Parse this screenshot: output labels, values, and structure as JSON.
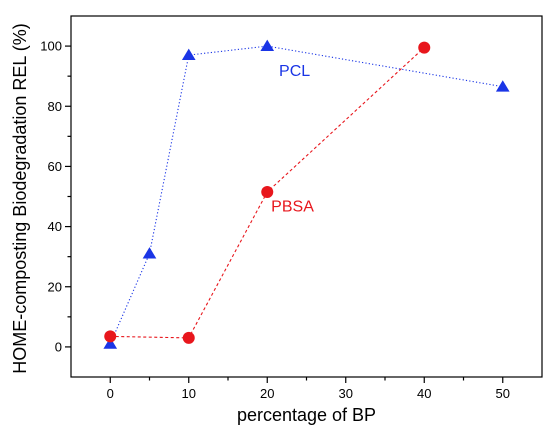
{
  "chart_data": {
    "type": "scatter",
    "title": "",
    "xlabel": "percentage of BP",
    "ylabel": "HOME-composting Biodegradation REL (%)",
    "xlim": [
      -5,
      55
    ],
    "ylim": [
      -10,
      110
    ],
    "xticks": [
      0,
      10,
      20,
      30,
      40,
      50
    ],
    "yticks": [
      0,
      20,
      40,
      60,
      80,
      100
    ],
    "xtick_labels": [
      "0",
      "10",
      "20",
      "30",
      "40",
      "50"
    ],
    "ytick_labels": [
      "0",
      "20",
      "40",
      "60",
      "80",
      "100"
    ],
    "grid": false,
    "legend": "none",
    "series": [
      {
        "name": "PCL",
        "color": "#1a35e6",
        "marker": "triangle",
        "line": "dotted",
        "label_at": [
          21.5,
          90
        ],
        "points": [
          [
            0,
            1
          ],
          [
            5,
            31
          ],
          [
            10,
            97
          ],
          [
            20,
            100
          ],
          [
            50,
            86.5
          ]
        ]
      },
      {
        "name": "PBSA",
        "color": "#e8161c",
        "marker": "circle",
        "line": "dashed",
        "label_at": [
          20.5,
          45
        ],
        "points": [
          [
            0,
            3.5
          ],
          [
            10,
            3
          ],
          [
            20,
            51.5
          ],
          [
            40,
            99.5
          ]
        ]
      }
    ]
  }
}
